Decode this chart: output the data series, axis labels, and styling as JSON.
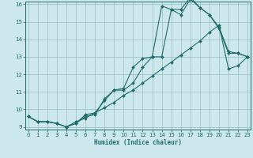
{
  "xlabel": "Humidex (Indice chaleur)",
  "bg_color": "#cde8ec",
  "grid_color": "#9bbcbf",
  "line_color": "#1e6b6b",
  "xlim": [
    0,
    23
  ],
  "ylim": [
    9,
    16
  ],
  "xticks": [
    0,
    1,
    2,
    3,
    4,
    5,
    6,
    7,
    8,
    9,
    10,
    11,
    12,
    13,
    14,
    15,
    16,
    17,
    18,
    19,
    20,
    21,
    22,
    23
  ],
  "yticks": [
    9,
    10,
    11,
    12,
    13,
    14,
    15,
    16
  ],
  "line1_x": [
    0,
    1,
    2,
    3,
    4,
    5,
    6,
    7,
    8,
    9,
    10,
    11,
    12,
    13,
    14,
    15,
    16,
    17,
    18,
    19,
    20,
    21,
    22,
    23
  ],
  "line1_y": [
    9.6,
    9.3,
    9.3,
    9.2,
    9.0,
    9.2,
    9.6,
    9.7,
    10.6,
    11.1,
    11.2,
    12.4,
    12.9,
    13.0,
    15.9,
    15.7,
    15.7,
    16.4,
    15.8,
    15.4,
    14.6,
    13.2,
    13.2,
    13.0
  ],
  "line2_x": [
    0,
    1,
    2,
    3,
    4,
    5,
    6,
    7,
    8,
    9,
    10,
    11,
    12,
    13,
    14,
    15,
    16,
    17,
    18,
    19,
    20,
    21,
    22,
    23
  ],
  "line2_y": [
    9.6,
    9.3,
    9.3,
    9.2,
    9.0,
    9.2,
    9.7,
    9.8,
    10.5,
    11.1,
    11.1,
    11.5,
    12.4,
    13.0,
    13.0,
    15.7,
    15.4,
    16.3,
    15.8,
    15.4,
    14.7,
    13.3,
    13.2,
    13.0
  ],
  "line3_x": [
    0,
    1,
    2,
    3,
    4,
    5,
    6,
    7,
    8,
    9,
    10,
    11,
    12,
    13,
    14,
    15,
    16,
    17,
    18,
    19,
    20,
    21,
    22,
    23
  ],
  "line3_y": [
    9.6,
    9.3,
    9.3,
    9.2,
    9.0,
    9.3,
    9.5,
    9.8,
    10.1,
    10.4,
    10.8,
    11.1,
    11.5,
    11.9,
    12.3,
    12.7,
    13.1,
    13.5,
    13.9,
    14.4,
    14.8,
    12.3,
    12.5,
    13.0
  ]
}
